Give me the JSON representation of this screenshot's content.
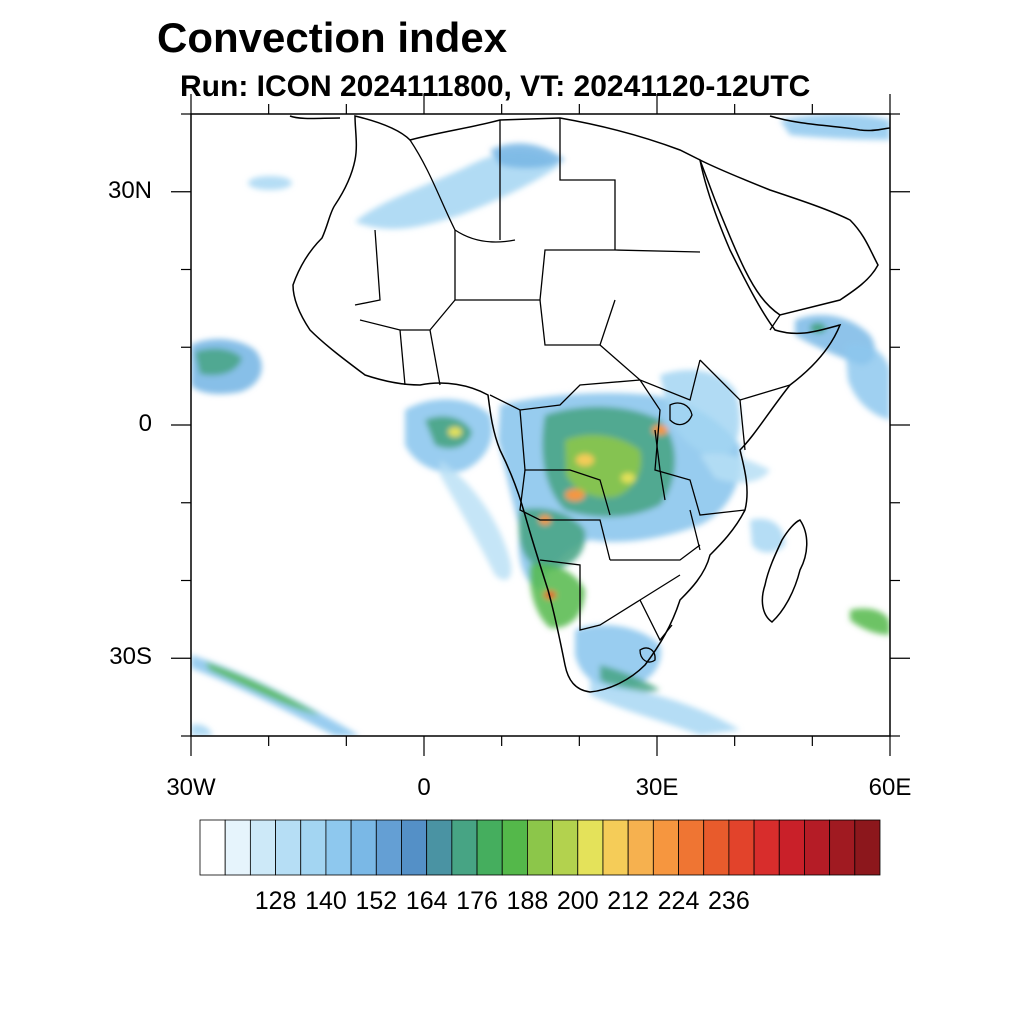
{
  "header": {
    "title": "Convection index",
    "subtitle": "Run: ICON 2024111800,  VT: 20241120-12UTC"
  },
  "map": {
    "projection": "cylindrical-equidistant",
    "lon_range": [
      -30,
      60
    ],
    "lat_range": [
      -40,
      40
    ],
    "lat_ticks": [
      {
        "value": 30,
        "label": "30N"
      },
      {
        "value": 0,
        "label": "0"
      },
      {
        "value": -30,
        "label": "30S"
      }
    ],
    "lon_ticks": [
      {
        "value": -30,
        "label": "30W"
      },
      {
        "value": 0,
        "label": "0"
      },
      {
        "value": 30,
        "label": "30E"
      },
      {
        "value": 60,
        "label": "60E"
      }
    ],
    "land_outline_color": "#000000",
    "background_color": "#ffffff"
  },
  "colorbar": {
    "labels": [
      "128",
      "140",
      "152",
      "164",
      "176",
      "188",
      "200",
      "212",
      "224",
      "236"
    ],
    "colors": [
      "#ffffff",
      "#e6f4fc",
      "#cde9f8",
      "#b6def5",
      "#a3d5f2",
      "#8ec8ee",
      "#7ab8e6",
      "#649fd4",
      "#5490c7",
      "#4a93a3",
      "#47a484",
      "#45ae5e",
      "#54b84a",
      "#8cc64a",
      "#b3d24e",
      "#e4e25a",
      "#f5cc58",
      "#f6b14f",
      "#f6963f",
      "#ef7533",
      "#e85b2c",
      "#e2432b",
      "#d82d2c",
      "#c92029",
      "#b51c26",
      "#a01a21",
      "#8c171c"
    ]
  }
}
